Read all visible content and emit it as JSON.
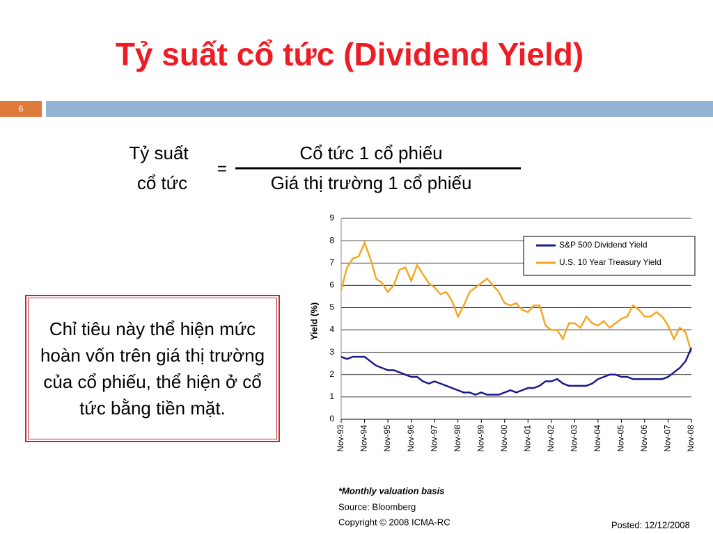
{
  "slide": {
    "title": "Tỷ suất cổ tức (Dividend Yield)",
    "page_number": "6",
    "formula": {
      "lhs": [
        "Tỷ suất",
        "cổ tức"
      ],
      "equals": "=",
      "numerator": "Cổ tức 1 cổ phiếu",
      "denominator": "Giá thị trường 1 cổ phiếu"
    },
    "box_text": "Chỉ tiêu này thể hiện mức hoàn vốn trên giá thị trường của cổ phiếu, thể hiện ở cổ tức bằng tiền mặt.",
    "notes": [
      "*Monthly valuation basis",
      "Source:  Bloomberg",
      "Copyright © 2008 ICMA-RC"
    ],
    "posted": "Posted: 12/12/2008"
  },
  "chart_data": {
    "type": "line",
    "ylabel": "Yield (%)",
    "categories": [
      "Nov-93",
      null,
      null,
      null,
      "Nov-94",
      null,
      null,
      null,
      "Nov-95",
      null,
      null,
      null,
      "Nov-96",
      null,
      null,
      null,
      "Nov-97",
      null,
      null,
      null,
      "Nov-98",
      null,
      null,
      null,
      "Nov-99",
      null,
      null,
      null,
      "Nov-00",
      null,
      null,
      null,
      "Nov-01",
      null,
      null,
      null,
      "Nov-02",
      null,
      null,
      null,
      "Nov-03",
      null,
      null,
      null,
      "Nov-04",
      null,
      null,
      null,
      "Nov-05",
      null,
      null,
      null,
      "Nov-06",
      null,
      null,
      null,
      "Nov-07",
      null,
      null,
      null,
      "Nov-08"
    ],
    "series": [
      {
        "name": "S&P 500 Dividend Yield",
        "color": "#1a1a8c",
        "values": [
          2.8,
          2.7,
          2.8,
          2.8,
          2.8,
          2.6,
          2.4,
          2.3,
          2.2,
          2.2,
          2.1,
          2.0,
          1.9,
          1.9,
          1.7,
          1.6,
          1.7,
          1.6,
          1.5,
          1.4,
          1.3,
          1.2,
          1.2,
          1.1,
          1.2,
          1.1,
          1.1,
          1.1,
          1.2,
          1.3,
          1.2,
          1.3,
          1.4,
          1.4,
          1.5,
          1.7,
          1.7,
          1.8,
          1.6,
          1.5,
          1.5,
          1.5,
          1.5,
          1.6,
          1.8,
          1.9,
          2.0,
          2.0,
          1.9,
          1.9,
          1.8,
          1.8,
          1.8,
          1.8,
          1.8,
          1.8,
          1.9,
          2.1,
          2.3,
          2.6,
          3.2
        ]
      },
      {
        "name": "U.S. 10 Year Treasury Yield",
        "color": "#f5a623",
        "values": [
          5.8,
          6.8,
          7.2,
          7.3,
          7.9,
          7.2,
          6.3,
          6.1,
          5.7,
          6.0,
          6.7,
          6.8,
          6.2,
          6.9,
          6.5,
          6.1,
          5.9,
          5.6,
          5.7,
          5.3,
          4.6,
          5.1,
          5.7,
          5.9,
          6.1,
          6.3,
          6.0,
          5.7,
          5.2,
          5.1,
          5.2,
          4.9,
          4.8,
          5.1,
          5.1,
          4.2,
          4.0,
          4.0,
          3.6,
          4.3,
          4.3,
          4.1,
          4.6,
          4.3,
          4.2,
          4.4,
          4.1,
          4.3,
          4.5,
          4.6,
          5.1,
          4.9,
          4.6,
          4.6,
          4.8,
          4.6,
          4.2,
          3.6,
          4.1,
          3.9,
          3.0
        ]
      }
    ],
    "ylim": [
      0,
      9
    ],
    "yticks": [
      0,
      1,
      2,
      3,
      4,
      5,
      6,
      7,
      8,
      9
    ],
    "grid": true,
    "legend": "upper right"
  }
}
